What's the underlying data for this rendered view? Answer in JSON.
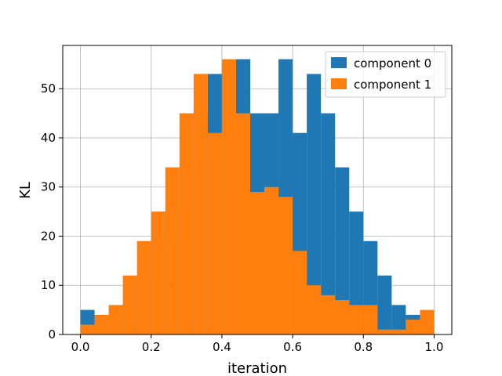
{
  "chart_data": {
    "type": "bar",
    "subtype": "histogram",
    "title": "",
    "xlabel": "iteration",
    "ylabel": "KL",
    "xlim": [
      -0.05,
      1.05
    ],
    "ylim": [
      0,
      58.8
    ],
    "grid": true,
    "legend": "top-right",
    "x_ticks": [
      0.0,
      0.2,
      0.4,
      0.6,
      0.8,
      1.0
    ],
    "x_tick_labels": [
      "0.0",
      "0.2",
      "0.4",
      "0.6",
      "0.8",
      "1.0"
    ],
    "y_ticks": [
      0,
      10,
      20,
      30,
      40,
      50
    ],
    "y_tick_labels": [
      "0",
      "10",
      "20",
      "30",
      "40",
      "50"
    ],
    "series": [
      {
        "name": "component 0",
        "color": "#1f77b4",
        "bin_edges": [
          0.0,
          0.04,
          0.08,
          0.12,
          0.16,
          0.2,
          0.24,
          0.28,
          0.32,
          0.36,
          0.4,
          0.44,
          0.48,
          0.52,
          0.56,
          0.6,
          0.64,
          0.68,
          0.72,
          0.76,
          0.8,
          0.84,
          0.88,
          0.92,
          0.96,
          1.0
        ],
        "counts": [
          5,
          3,
          4,
          6,
          12,
          19,
          25,
          34,
          45,
          53,
          41,
          56,
          45,
          45,
          56,
          41,
          53,
          45,
          34,
          25,
          19,
          12,
          6,
          4,
          3
        ]
      },
      {
        "name": "component 1",
        "color": "#ff7f0e",
        "bin_edges": [
          0.0,
          0.04,
          0.08,
          0.12,
          0.16,
          0.2,
          0.24,
          0.28,
          0.32,
          0.36,
          0.4,
          0.44,
          0.48,
          0.52,
          0.56,
          0.6,
          0.64,
          0.68,
          0.72,
          0.76,
          0.8,
          0.84,
          0.88,
          0.92,
          0.96,
          1.0
        ],
        "counts": [
          2,
          4,
          6,
          12,
          19,
          25,
          34,
          45,
          53,
          41,
          56,
          45,
          29,
          30,
          28,
          17,
          10,
          8,
          7,
          6,
          6,
          1,
          1,
          3,
          5
        ]
      }
    ]
  }
}
